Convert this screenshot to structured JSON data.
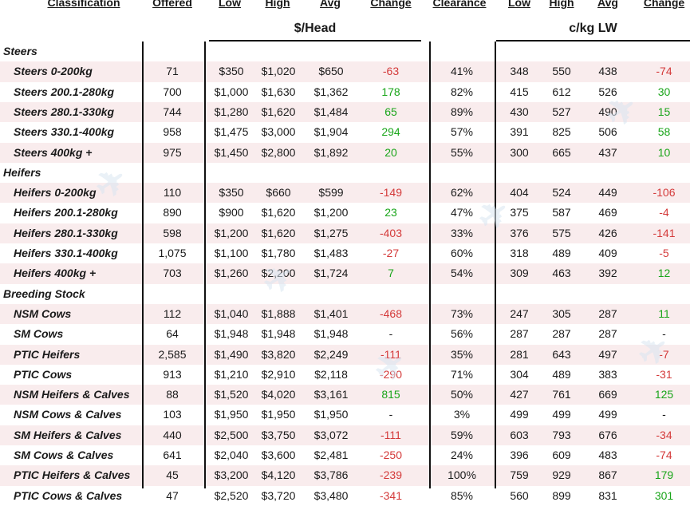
{
  "headers": {
    "classification": "Classification",
    "offered": "Offered",
    "low": "Low",
    "high": "High",
    "avg": "Avg",
    "change": "Change",
    "clearance": "Clearance",
    "low2": "Low",
    "high2": "High",
    "avg2": "Avg",
    "change2": "Change"
  },
  "groups": {
    "head": "$/Head",
    "lw": "c/kg LW"
  },
  "rows": [
    {
      "type": "section",
      "label": "Steers"
    },
    {
      "label": "Steers 0-200kg",
      "offered": "71",
      "low": "$350",
      "high": "$1,020",
      "avg": "$650",
      "change": "-63",
      "change_dir": "neg",
      "clearance": "41%",
      "low2": "348",
      "high2": "550",
      "avg2": "438",
      "change2": "-74",
      "change2_dir": "neg"
    },
    {
      "label": "Steers 200.1-280kg",
      "offered": "700",
      "low": "$1,000",
      "high": "$1,630",
      "avg": "$1,362",
      "change": "178",
      "change_dir": "pos",
      "clearance": "82%",
      "low2": "415",
      "high2": "612",
      "avg2": "526",
      "change2": "30",
      "change2_dir": "pos"
    },
    {
      "label": "Steers 280.1-330kg",
      "offered": "744",
      "low": "$1,280",
      "high": "$1,620",
      "avg": "$1,484",
      "change": "65",
      "change_dir": "pos",
      "clearance": "89%",
      "low2": "430",
      "high2": "527",
      "avg2": "490",
      "change2": "15",
      "change2_dir": "pos"
    },
    {
      "label": "Steers 330.1-400kg",
      "offered": "958",
      "low": "$1,475",
      "high": "$3,000",
      "avg": "$1,904",
      "change": "294",
      "change_dir": "pos",
      "clearance": "57%",
      "low2": "391",
      "high2": "825",
      "avg2": "506",
      "change2": "58",
      "change2_dir": "pos"
    },
    {
      "label": "Steers 400kg +",
      "offered": "975",
      "low": "$1,450",
      "high": "$2,800",
      "avg": "$1,892",
      "change": "20",
      "change_dir": "pos",
      "clearance": "55%",
      "low2": "300",
      "high2": "665",
      "avg2": "437",
      "change2": "10",
      "change2_dir": "pos"
    },
    {
      "type": "section",
      "label": "Heifers"
    },
    {
      "label": "Heifers 0-200kg",
      "offered": "110",
      "low": "$350",
      "high": "$660",
      "avg": "$599",
      "change": "-149",
      "change_dir": "neg",
      "clearance": "62%",
      "low2": "404",
      "high2": "524",
      "avg2": "449",
      "change2": "-106",
      "change2_dir": "neg"
    },
    {
      "label": "Heifers 200.1-280kg",
      "offered": "890",
      "low": "$900",
      "high": "$1,620",
      "avg": "$1,200",
      "change": "23",
      "change_dir": "pos",
      "clearance": "47%",
      "low2": "375",
      "high2": "587",
      "avg2": "469",
      "change2": "-4",
      "change2_dir": "neg"
    },
    {
      "label": "Heifers 280.1-330kg",
      "offered": "598",
      "low": "$1,200",
      "high": "$1,620",
      "avg": "$1,275",
      "change": "-403",
      "change_dir": "neg",
      "clearance": "33%",
      "low2": "376",
      "high2": "575",
      "avg2": "426",
      "change2": "-141",
      "change2_dir": "neg"
    },
    {
      "label": "Heifers 330.1-400kg",
      "offered": "1,075",
      "low": "$1,100",
      "high": "$1,780",
      "avg": "$1,483",
      "change": "-27",
      "change_dir": "neg",
      "clearance": "60%",
      "low2": "318",
      "high2": "489",
      "avg2": "409",
      "change2": "-5",
      "change2_dir": "neg"
    },
    {
      "label": "Heifers 400kg +",
      "offered": "703",
      "low": "$1,260",
      "high": "$2,200",
      "avg": "$1,724",
      "change": "7",
      "change_dir": "pos",
      "clearance": "54%",
      "low2": "309",
      "high2": "463",
      "avg2": "392",
      "change2": "12",
      "change2_dir": "pos"
    },
    {
      "type": "section",
      "label": "Breeding Stock"
    },
    {
      "label": "NSM Cows",
      "offered": "112",
      "low": "$1,040",
      "high": "$1,888",
      "avg": "$1,401",
      "change": "-468",
      "change_dir": "neg",
      "clearance": "73%",
      "low2": "247",
      "high2": "305",
      "avg2": "287",
      "change2": "11",
      "change2_dir": "pos"
    },
    {
      "label": "SM Cows",
      "offered": "64",
      "low": "$1,948",
      "high": "$1,948",
      "avg": "$1,948",
      "change": "-",
      "change_dir": "none",
      "clearance": "56%",
      "low2": "287",
      "high2": "287",
      "avg2": "287",
      "change2": "-",
      "change2_dir": "none"
    },
    {
      "label": "PTIC Heifers",
      "offered": "2,585",
      "low": "$1,490",
      "high": "$3,820",
      "avg": "$2,249",
      "change": "-111",
      "change_dir": "neg",
      "clearance": "35%",
      "low2": "281",
      "high2": "643",
      "avg2": "497",
      "change2": "-7",
      "change2_dir": "neg"
    },
    {
      "label": "PTIC Cows",
      "offered": "913",
      "low": "$1,210",
      "high": "$2,910",
      "avg": "$2,118",
      "change": "-290",
      "change_dir": "neg",
      "clearance": "71%",
      "low2": "304",
      "high2": "489",
      "avg2": "383",
      "change2": "-31",
      "change2_dir": "neg"
    },
    {
      "label": "NSM Heifers & Calves",
      "offered": "88",
      "low": "$1,520",
      "high": "$4,020",
      "avg": "$3,161",
      "change": "815",
      "change_dir": "pos",
      "clearance": "50%",
      "low2": "427",
      "high2": "761",
      "avg2": "669",
      "change2": "125",
      "change2_dir": "pos"
    },
    {
      "label": "NSM Cows & Calves",
      "offered": "103",
      "low": "$1,950",
      "high": "$1,950",
      "avg": "$1,950",
      "change": "-",
      "change_dir": "none",
      "clearance": "3%",
      "low2": "499",
      "high2": "499",
      "avg2": "499",
      "change2": "-",
      "change2_dir": "none"
    },
    {
      "label": "SM Heifers & Calves",
      "offered": "440",
      "low": "$2,500",
      "high": "$3,750",
      "avg": "$3,072",
      "change": "-111",
      "change_dir": "neg",
      "clearance": "59%",
      "low2": "603",
      "high2": "793",
      "avg2": "676",
      "change2": "-34",
      "change2_dir": "neg"
    },
    {
      "label": "SM Cows & Calves",
      "offered": "641",
      "low": "$2,040",
      "high": "$3,600",
      "avg": "$2,481",
      "change": "-250",
      "change_dir": "neg",
      "clearance": "24%",
      "low2": "396",
      "high2": "609",
      "avg2": "483",
      "change2": "-74",
      "change2_dir": "neg"
    },
    {
      "label": "PTIC Heifers & Calves",
      "offered": "45",
      "low": "$3,200",
      "high": "$4,120",
      "avg": "$3,786",
      "change": "-239",
      "change_dir": "neg",
      "clearance": "100%",
      "low2": "759",
      "high2": "929",
      "avg2": "867",
      "change2": "179",
      "change2_dir": "pos"
    },
    {
      "label": "PTIC Cows & Calves",
      "offered": "47",
      "low": "$2,520",
      "high": "$3,720",
      "avg": "$3,480",
      "change": "-341",
      "change_dir": "neg",
      "clearance": "85%",
      "low2": "560",
      "high2": "899",
      "avg2": "831",
      "change2": "301",
      "change2_dir": "pos"
    }
  ],
  "colors": {
    "positive": "#1aa51a",
    "negative": "#d43a3a",
    "row_alt": "#f9eced",
    "watermark": "#d9e6f2"
  }
}
